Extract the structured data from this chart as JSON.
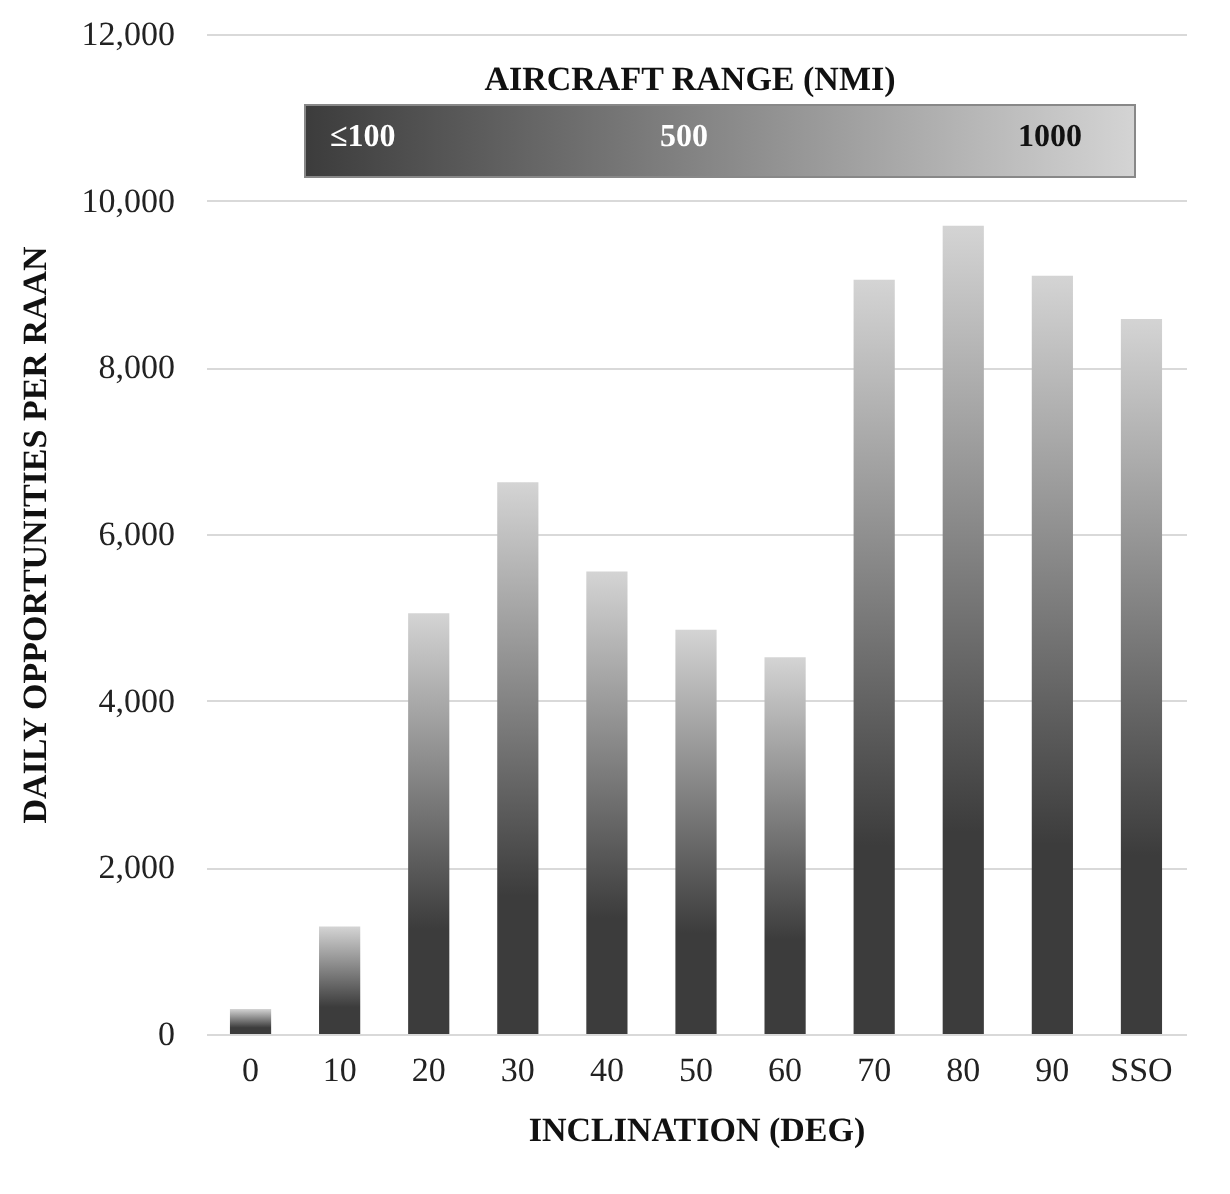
{
  "chart_data": {
    "type": "bar",
    "xlabel": "INCLINATION (DEG)",
    "ylabel": "DAILY OPPORTUNITIES PER RAAN",
    "categories": [
      "0",
      "10",
      "20",
      "30",
      "40",
      "50",
      "60",
      "70",
      "80",
      "90",
      "SSO"
    ],
    "series": [
      {
        "color": "#d4d4d4",
        "values": [
          300,
          1290,
          5050,
          6620,
          5550,
          4850,
          4520,
          9050,
          9700,
          9100,
          8580
        ]
      }
    ],
    "ylim": [
      0,
      12000
    ],
    "yticks": [
      0,
      {
        "value": 2000,
        "label": "2,000"
      },
      {
        "value": 4000,
        "label": "4,000"
      },
      {
        "value": 6000,
        "label": "6,000"
      },
      {
        "value": 8000,
        "label": "8,000"
      },
      {
        "value": 10000,
        "label": "10,000"
      },
      {
        "value": 12000,
        "label": "12,000"
      }
    ],
    "grid": "y",
    "annotations": [
      "AIRCRAFT RANGE (NMI)",
      "≤100",
      "500",
      "1000"
    ]
  }
}
